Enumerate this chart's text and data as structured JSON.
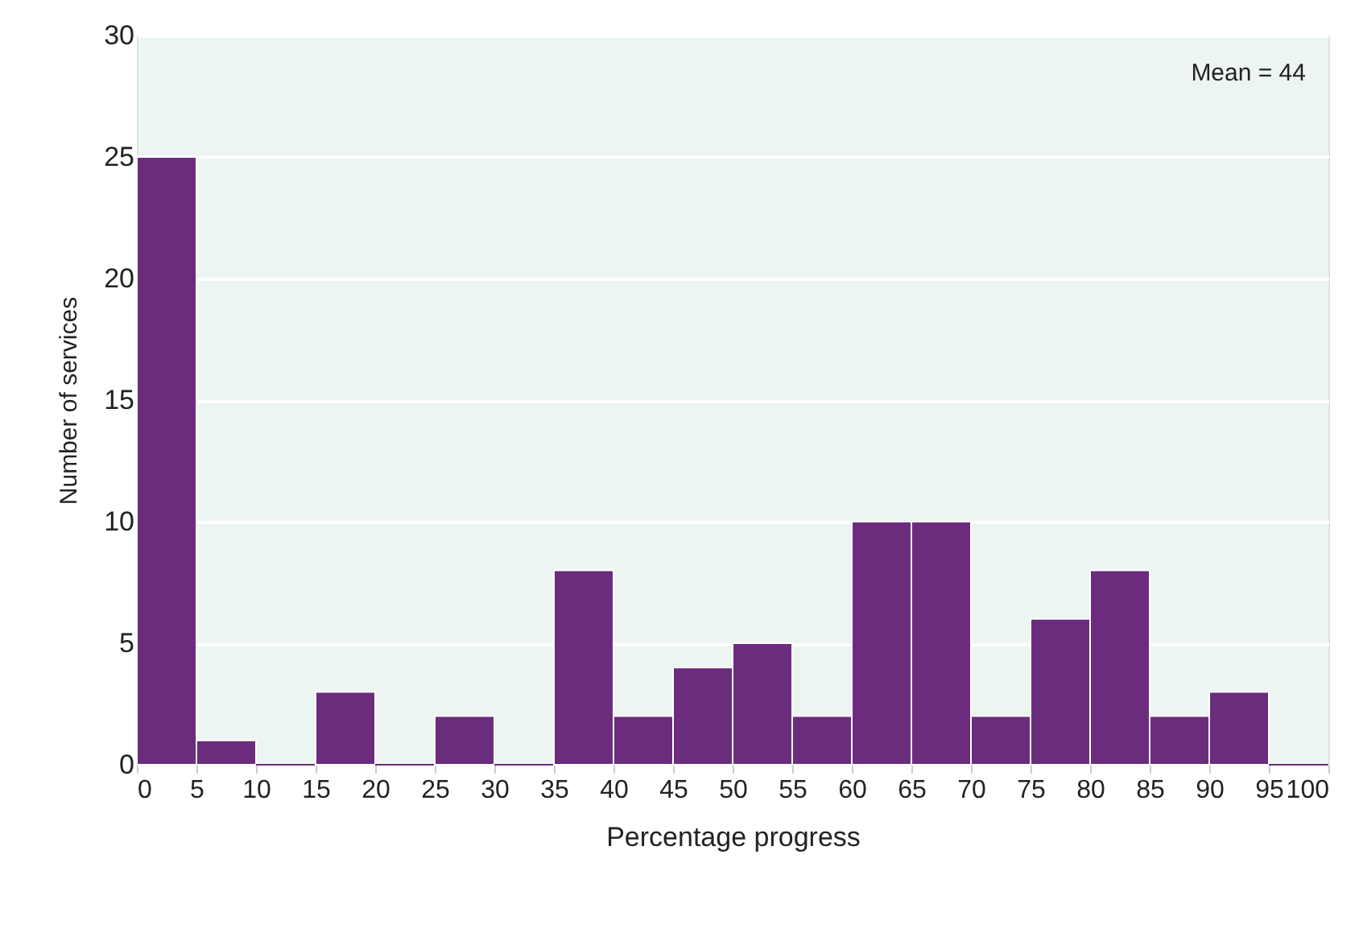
{
  "chart_data": {
    "type": "histogram",
    "xlabel": "Percentage progress",
    "ylabel": "Number of services",
    "bins": [
      0,
      5,
      10,
      15,
      20,
      25,
      30,
      35,
      40,
      45,
      50,
      55,
      60,
      65,
      70,
      75,
      80,
      85,
      90,
      95,
      100
    ],
    "values": [
      25,
      1,
      0,
      3,
      0,
      2,
      0,
      8,
      2,
      4,
      5,
      2,
      10,
      10,
      2,
      6,
      8,
      2,
      3,
      0
    ],
    "color": "#6b2c7e",
    "xlim": [
      0,
      100
    ],
    "xticks": [
      0,
      5,
      10,
      15,
      20,
      25,
      30,
      35,
      40,
      45,
      50,
      55,
      60,
      65,
      70,
      75,
      80,
      85,
      90,
      95,
      100
    ],
    "ylim": [
      0,
      30
    ],
    "yticks": [
      0,
      5,
      10,
      15,
      20,
      25,
      30
    ],
    "grid": "y",
    "annotations": [
      "Mean = 44"
    ]
  }
}
